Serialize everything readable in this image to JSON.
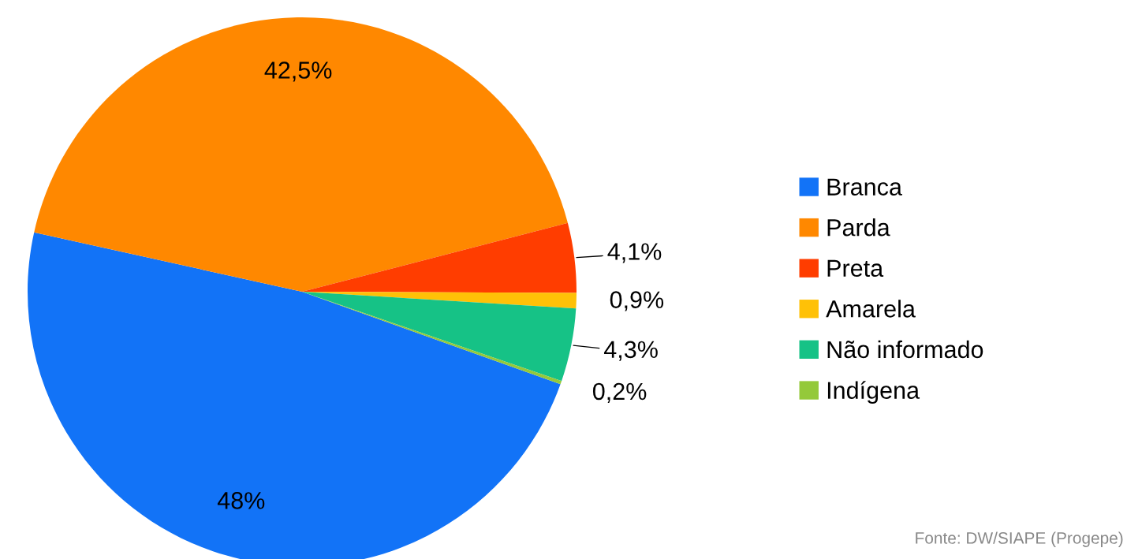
{
  "chart_data": {
    "type": "pie",
    "categories": [
      "Branca",
      "Parda",
      "Preta",
      "Amarela",
      "Não informado",
      "Indígena"
    ],
    "values": [
      48,
      42.5,
      4.1,
      0.9,
      4.3,
      0.2
    ],
    "value_labels": [
      "48%",
      "42,5%",
      "4,1%",
      "0,9%",
      "4,3%",
      "0,2%"
    ],
    "colors": [
      "#1273f7",
      "#ff8800",
      "#ff3d00",
      "#ffc107",
      "#16c286",
      "#94c93a"
    ],
    "legend": "right",
    "annotations": [
      "Fonte: DW/SIAPE (Progepe)"
    ]
  }
}
